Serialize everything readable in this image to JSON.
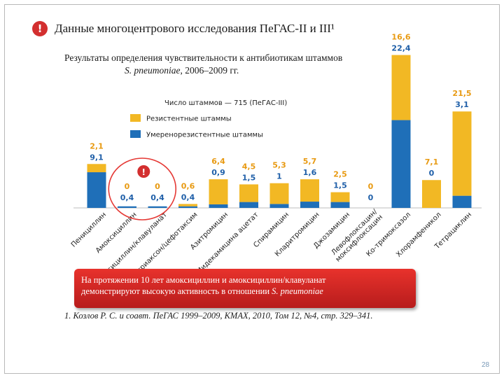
{
  "slide": {
    "title": "Данные многоцентрового исследования ПеГАС-II и III¹",
    "subtitle_line1": "Результаты определения чувствительности к антибиотикам штаммов",
    "subtitle_species": "S. pneumoniae",
    "subtitle_years": ", 2006–2009 гг.",
    "callout_line1": "На протяжении 10 лет амоксициллин и амоксициллин/клавуланат",
    "callout_line2": "демонстрируют высокую активность в отношении ",
    "callout_species": "S. pneumoniae",
    "reference": "1. Козлов Р. С. и соавт. ПеГАС 1999–2009, КМАХ, 2010, Том 12, №4, стр. 329–341.",
    "page_number": "28"
  },
  "chart_data": {
    "type": "bar",
    "stacked": true,
    "note": "Число штаммов — 715 (ПеГАС-III)",
    "legend_position": "top-center",
    "ylim": [
      0,
      40
    ],
    "categories": [
      "Пенициллин",
      "Амоксициллин",
      "Амоксициллин/клавуланат",
      "Цефтриаксон/цефотаксим",
      "Азитромицин",
      "Мидекамицина ацетат",
      "Спирамицин",
      "Кларитромицин",
      "Джозамицин",
      "Левофлоксацин/ моксифлоксацин",
      "Ко-тримоксазол",
      "Хлорамфеникол",
      "Тетрациклин"
    ],
    "series": [
      {
        "name": "Умеренорезистентные штаммы",
        "color": "#1f6fb8",
        "values": [
          9.1,
          0.4,
          0.4,
          0.4,
          0.9,
          1.5,
          1,
          1.6,
          1.5,
          0,
          22.4,
          0,
          3.1
        ],
        "labels": [
          "9,1",
          "0,4",
          "0,4",
          "0,4",
          "0,9",
          "1,5",
          "1",
          "1,6",
          "1,5",
          "0",
          "22,4",
          "0",
          "3,1"
        ]
      },
      {
        "name": "Резистентные штаммы",
        "color": "#f2b824",
        "values": [
          2.1,
          0,
          0,
          0.6,
          6.4,
          4.5,
          5.3,
          5.7,
          2.5,
          0,
          16.6,
          7.1,
          21.5
        ],
        "labels": [
          "2,1",
          "0",
          "0",
          "0,6",
          "6,4",
          "4,5",
          "5,3",
          "5,7",
          "2,5",
          "0",
          "16,6",
          "7,1",
          "21,5"
        ]
      }
    ],
    "highlighted": [
      1,
      2
    ]
  }
}
